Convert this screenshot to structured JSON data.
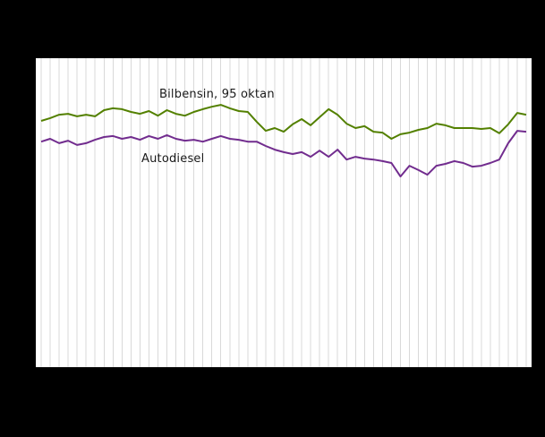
{
  "chart_data": {
    "type": "line",
    "x": [
      1,
      2,
      3,
      4,
      5,
      6,
      7,
      8,
      9,
      10,
      11,
      12,
      13,
      14,
      15,
      16,
      17,
      18,
      19,
      20,
      21,
      22,
      23,
      24,
      25,
      26,
      27,
      28,
      29,
      30,
      31,
      32,
      33,
      34,
      35,
      36,
      37,
      38,
      39,
      40,
      41,
      42,
      43,
      44,
      45,
      46,
      47,
      48,
      49,
      50,
      51,
      52,
      53,
      54,
      55
    ],
    "series": [
      {
        "name": "Bilbensin, 95 oktan",
        "color": "#538000",
        "values": [
          79.7,
          80.6,
          81.7,
          82.0,
          81.2,
          81.7,
          81.2,
          83.2,
          83.8,
          83.5,
          82.6,
          82.0,
          82.9,
          81.4,
          83.2,
          82.0,
          81.4,
          82.6,
          83.5,
          84.3,
          84.9,
          83.8,
          82.9,
          82.6,
          79.4,
          76.5,
          77.4,
          76.2,
          78.6,
          80.3,
          78.3,
          80.9,
          83.5,
          81.7,
          78.8,
          77.4,
          78.0,
          76.2,
          75.9,
          73.9,
          75.4,
          75.9,
          76.8,
          77.4,
          78.8,
          78.3,
          77.4,
          77.4,
          77.4,
          77.1,
          77.4,
          75.7,
          78.6,
          82.3,
          81.7
        ]
      },
      {
        "name": "Autodiesel",
        "color": "#712c8e",
        "values": [
          73.0,
          73.9,
          72.5,
          73.3,
          71.9,
          72.5,
          73.6,
          74.5,
          74.8,
          73.9,
          74.5,
          73.6,
          74.8,
          73.9,
          75.1,
          73.9,
          73.3,
          73.6,
          73.0,
          73.9,
          74.8,
          73.9,
          73.6,
          73.0,
          73.0,
          71.6,
          70.4,
          69.6,
          69.0,
          69.6,
          68.1,
          70.1,
          68.1,
          70.4,
          67.2,
          68.1,
          67.5,
          67.2,
          66.7,
          66.1,
          61.7,
          65.2,
          63.8,
          62.3,
          65.2,
          65.8,
          66.7,
          66.1,
          64.9,
          65.2,
          66.1,
          67.2,
          72.5,
          76.5,
          76.2
        ]
      }
    ],
    "title": "",
    "xlabel": "",
    "ylabel": "",
    "ylim": [
      0,
      100
    ],
    "grid": "vertical-only",
    "legend": "inline-labels"
  },
  "labels": {
    "bilbensin": "Bilbensin, 95 oktan",
    "autodiesel": "Autodiesel"
  },
  "colors": {
    "background": "#000000",
    "plot_background": "#ffffff",
    "gridline": "#d9d9d9",
    "bilbensin": "#538000",
    "autodiesel": "#712c8e"
  }
}
